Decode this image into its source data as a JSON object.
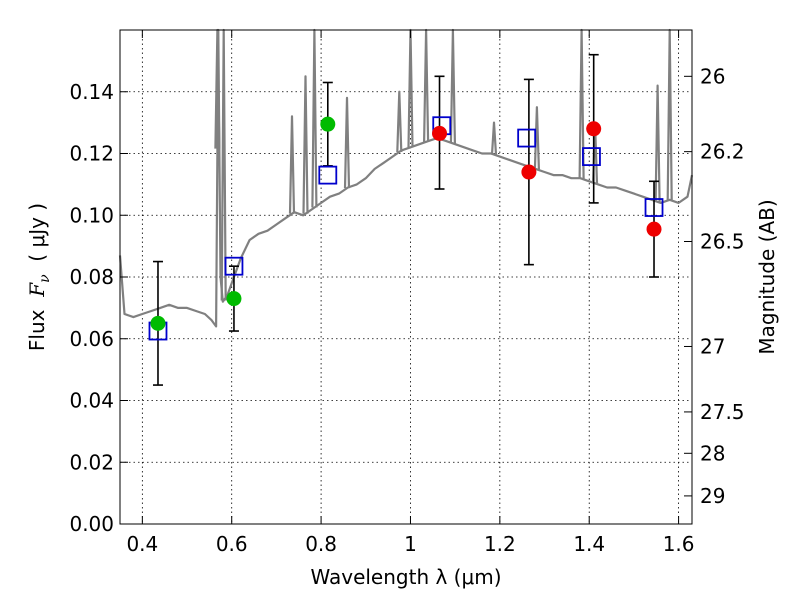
{
  "chart_data": {
    "type": "scatter",
    "xlabel": "Wavelength  λ (μm)",
    "ylabel_left_prefix": "Flux  ",
    "ylabel_left_symbol": "F",
    "ylabel_left_sub": "ν",
    "ylabel_left_suffix": "  ( μJy )",
    "ylabel_right": "Magnitude (AB)",
    "xlim": [
      0.35,
      1.63
    ],
    "ylim": [
      0.0,
      0.16
    ],
    "x_ticks": [
      0.4,
      0.6,
      0.8,
      1.0,
      1.2,
      1.4,
      1.6
    ],
    "x_tick_labels": [
      "0.4",
      "0.6",
      "0.8",
      "1",
      "1.2",
      "1.4",
      "1.6"
    ],
    "y_ticks": [
      0.0,
      0.02,
      0.04,
      0.06,
      0.08,
      0.1,
      0.12,
      0.14
    ],
    "y_tick_labels": [
      "0.00",
      "0.02",
      "0.04",
      "0.06",
      "0.08",
      "0.10",
      "0.12",
      "0.14"
    ],
    "right_ticks": [
      {
        "flux": 0.145,
        "label": "26"
      },
      {
        "flux": 0.1206,
        "label": "26.2"
      },
      {
        "flux": 0.0915,
        "label": "26.5"
      },
      {
        "flux": 0.0575,
        "label": "27"
      },
      {
        "flux": 0.0363,
        "label": "27.5"
      },
      {
        "flux": 0.0229,
        "label": "28"
      },
      {
        "flux": 0.0091,
        "label": "29"
      }
    ],
    "grid": true,
    "colors": {
      "spectrum": "#808080",
      "model_squares": "#0000cc",
      "green_points": "#00bb00",
      "red_points": "#ee0000",
      "error_bars": "#000000"
    },
    "spectrum": {
      "name": "",
      "x": [
        0.35,
        0.36,
        0.38,
        0.4,
        0.42,
        0.44,
        0.46,
        0.48,
        0.5,
        0.52,
        0.54,
        0.555,
        0.56,
        0.565,
        0.57,
        0.575,
        0.58,
        0.59,
        0.6,
        0.62,
        0.64,
        0.66,
        0.68,
        0.7,
        0.72,
        0.74,
        0.76,
        0.78,
        0.8,
        0.82,
        0.84,
        0.86,
        0.88,
        0.9,
        0.92,
        0.94,
        0.96,
        0.98,
        1.0,
        1.02,
        1.04,
        1.06,
        1.08,
        1.1,
        1.12,
        1.14,
        1.16,
        1.18,
        1.2,
        1.22,
        1.24,
        1.26,
        1.28,
        1.3,
        1.32,
        1.34,
        1.36,
        1.38,
        1.4,
        1.42,
        1.44,
        1.46,
        1.48,
        1.5,
        1.52,
        1.54,
        1.56,
        1.58,
        1.6,
        1.62,
        1.63
      ],
      "y": [
        0.087,
        0.068,
        0.067,
        0.068,
        0.069,
        0.07,
        0.071,
        0.07,
        0.07,
        0.069,
        0.068,
        0.066,
        0.065,
        0.064,
        0.16,
        0.08,
        0.072,
        0.074,
        0.078,
        0.086,
        0.092,
        0.094,
        0.095,
        0.097,
        0.099,
        0.101,
        0.1,
        0.102,
        0.104,
        0.106,
        0.107,
        0.109,
        0.11,
        0.112,
        0.115,
        0.117,
        0.119,
        0.121,
        0.122,
        0.123,
        0.124,
        0.125,
        0.124,
        0.123,
        0.122,
        0.121,
        0.12,
        0.12,
        0.119,
        0.118,
        0.117,
        0.116,
        0.115,
        0.114,
        0.113,
        0.113,
        0.112,
        0.112,
        0.111,
        0.11,
        0.109,
        0.109,
        0.108,
        0.107,
        0.106,
        0.105,
        0.104,
        0.105,
        0.104,
        0.106,
        0.113
      ]
    },
    "emission_lines": [
      {
        "x": 0.568,
        "peak": 0.16
      },
      {
        "x": 0.582,
        "peak": 0.16
      },
      {
        "x": 0.735,
        "peak": 0.132
      },
      {
        "x": 0.765,
        "peak": 0.145
      },
      {
        "x": 0.785,
        "peak": 0.16
      },
      {
        "x": 0.858,
        "peak": 0.138
      },
      {
        "x": 0.975,
        "peak": 0.14
      },
      {
        "x": 1.0,
        "peak": 0.16
      },
      {
        "x": 1.035,
        "peak": 0.16
      },
      {
        "x": 1.095,
        "peak": 0.16
      },
      {
        "x": 1.187,
        "peak": 0.13
      },
      {
        "x": 1.283,
        "peak": 0.135
      },
      {
        "x": 1.383,
        "peak": 0.16
      },
      {
        "x": 1.413,
        "peak": 0.13
      },
      {
        "x": 1.553,
        "peak": 0.142
      },
      {
        "x": 1.58,
        "peak": 0.16
      }
    ],
    "squares": [
      {
        "x": 0.435,
        "y": 0.0625
      },
      {
        "x": 0.605,
        "y": 0.0835
      },
      {
        "x": 0.815,
        "y": 0.113
      },
      {
        "x": 1.07,
        "y": 0.129
      },
      {
        "x": 1.26,
        "y": 0.125
      },
      {
        "x": 1.405,
        "y": 0.119
      },
      {
        "x": 1.545,
        "y": 0.1025
      }
    ],
    "points": [
      {
        "x": 0.435,
        "y": 0.065,
        "err_low": 0.045,
        "err_high": 0.085,
        "color": "green"
      },
      {
        "x": 0.605,
        "y": 0.073,
        "err_low": 0.0625,
        "err_high": 0.0835,
        "color": "green"
      },
      {
        "x": 0.815,
        "y": 0.1295,
        "err_low": 0.116,
        "err_high": 0.143,
        "color": "green"
      },
      {
        "x": 1.065,
        "y": 0.1265,
        "err_low": 0.1085,
        "err_high": 0.145,
        "color": "red"
      },
      {
        "x": 1.265,
        "y": 0.114,
        "err_low": 0.084,
        "err_high": 0.144,
        "color": "red"
      },
      {
        "x": 1.41,
        "y": 0.128,
        "err_low": 0.104,
        "err_high": 0.152,
        "color": "red"
      },
      {
        "x": 1.545,
        "y": 0.0955,
        "err_low": 0.08,
        "err_high": 0.111,
        "color": "red"
      }
    ]
  }
}
